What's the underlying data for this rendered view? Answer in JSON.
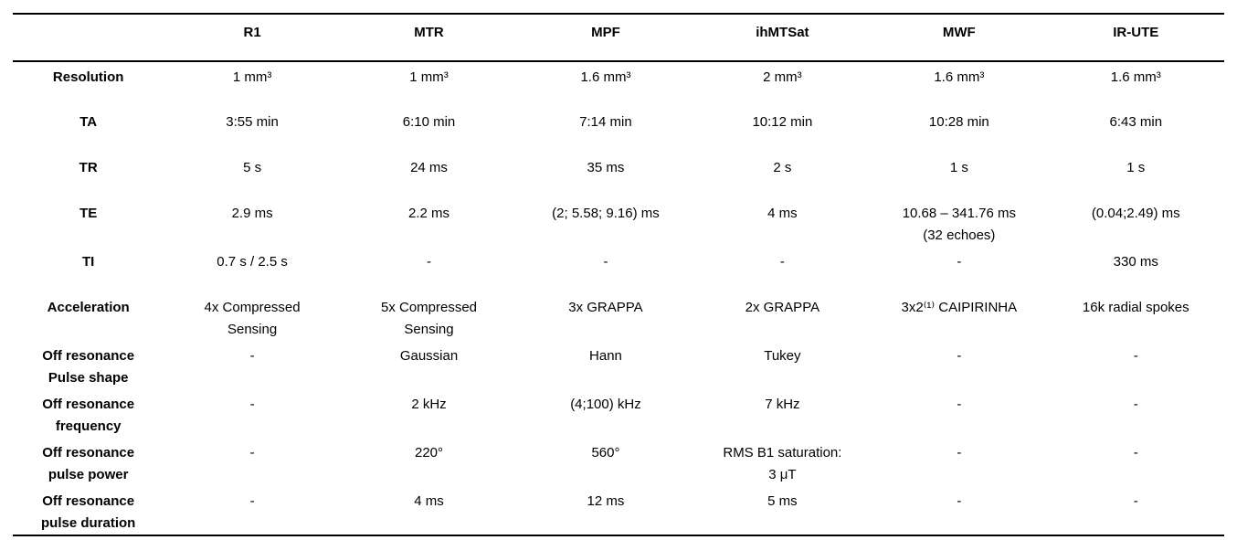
{
  "table": {
    "columns": [
      "",
      "R1",
      "MTR",
      "MPF",
      "ihMTSat",
      "MWF",
      "IR-UTE"
    ],
    "rows": [
      {
        "label": "Resolution",
        "values": [
          "1 mm³",
          "1 mm³",
          "1.6 mm³",
          "2 mm³",
          "1.6 mm³",
          "1.6 mm³"
        ]
      },
      {
        "label": "TA",
        "values": [
          "3:55 min",
          "6:10 min",
          "7:14 min",
          "10:12 min",
          "10:28 min",
          "6:43 min"
        ]
      },
      {
        "label": "TR",
        "values": [
          "5 s",
          "24 ms",
          "35 ms",
          "2 s",
          "1 s",
          "1 s"
        ]
      },
      {
        "label": "TE",
        "values": [
          "2.9 ms",
          "2.2 ms",
          "(2; 5.58; 9.16) ms",
          "4 ms",
          "10.68 – 341.76 ms\n(32 echoes)",
          "(0.04;2.49) ms"
        ]
      },
      {
        "label": "TI",
        "values": [
          "0.7 s / 2.5 s",
          "-",
          "-",
          "-",
          "-",
          "330 ms"
        ]
      },
      {
        "label": "Acceleration",
        "values": [
          "4x Compressed\nSensing",
          "5x Compressed\nSensing",
          "3x GRAPPA",
          "2x GRAPPA",
          "3x2⁽¹⁾ CAIPIRINHA",
          "16k radial spokes"
        ]
      },
      {
        "label": "Off resonance\nPulse shape",
        "values": [
          "-",
          "Gaussian",
          "Hann",
          "Tukey",
          "-",
          "-"
        ]
      },
      {
        "label": "Off resonance\nfrequency",
        "values": [
          "-",
          "2 kHz",
          "(4;100) kHz",
          "7 kHz",
          "-",
          "-"
        ]
      },
      {
        "label": "Off resonance\npulse power",
        "values": [
          "-",
          "220°",
          "560°",
          "RMS B1 saturation:\n3 μT",
          "-",
          "-"
        ]
      },
      {
        "label": "Off resonance\npulse duration",
        "values": [
          "-",
          "4 ms",
          "12 ms",
          "5 ms",
          "-",
          "-"
        ]
      }
    ]
  }
}
